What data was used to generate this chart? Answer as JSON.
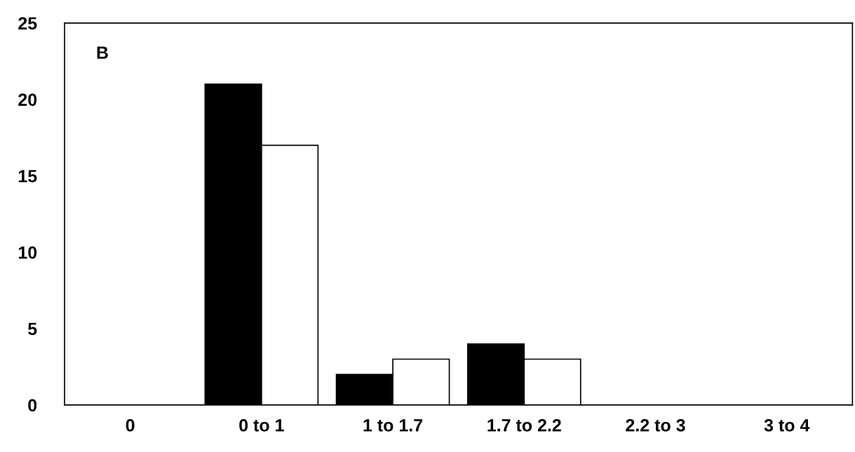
{
  "chart_data": {
    "type": "bar",
    "categories": [
      "0",
      "0 to 1",
      "1 to 1.7",
      "1.7 to 2.2",
      "2.2 to 3",
      "3 to 4"
    ],
    "series": [
      {
        "color": "#000000",
        "values": [
          0,
          21,
          2,
          4,
          0,
          0
        ]
      },
      {
        "color": "#ffffff",
        "values": [
          0,
          17,
          3,
          3,
          0,
          0
        ]
      }
    ],
    "ylim": [
      0,
      25
    ],
    "yticks": [
      0,
      5,
      10,
      15,
      20,
      25
    ],
    "grid": false,
    "legend": false,
    "annotations": [
      "B"
    ]
  }
}
